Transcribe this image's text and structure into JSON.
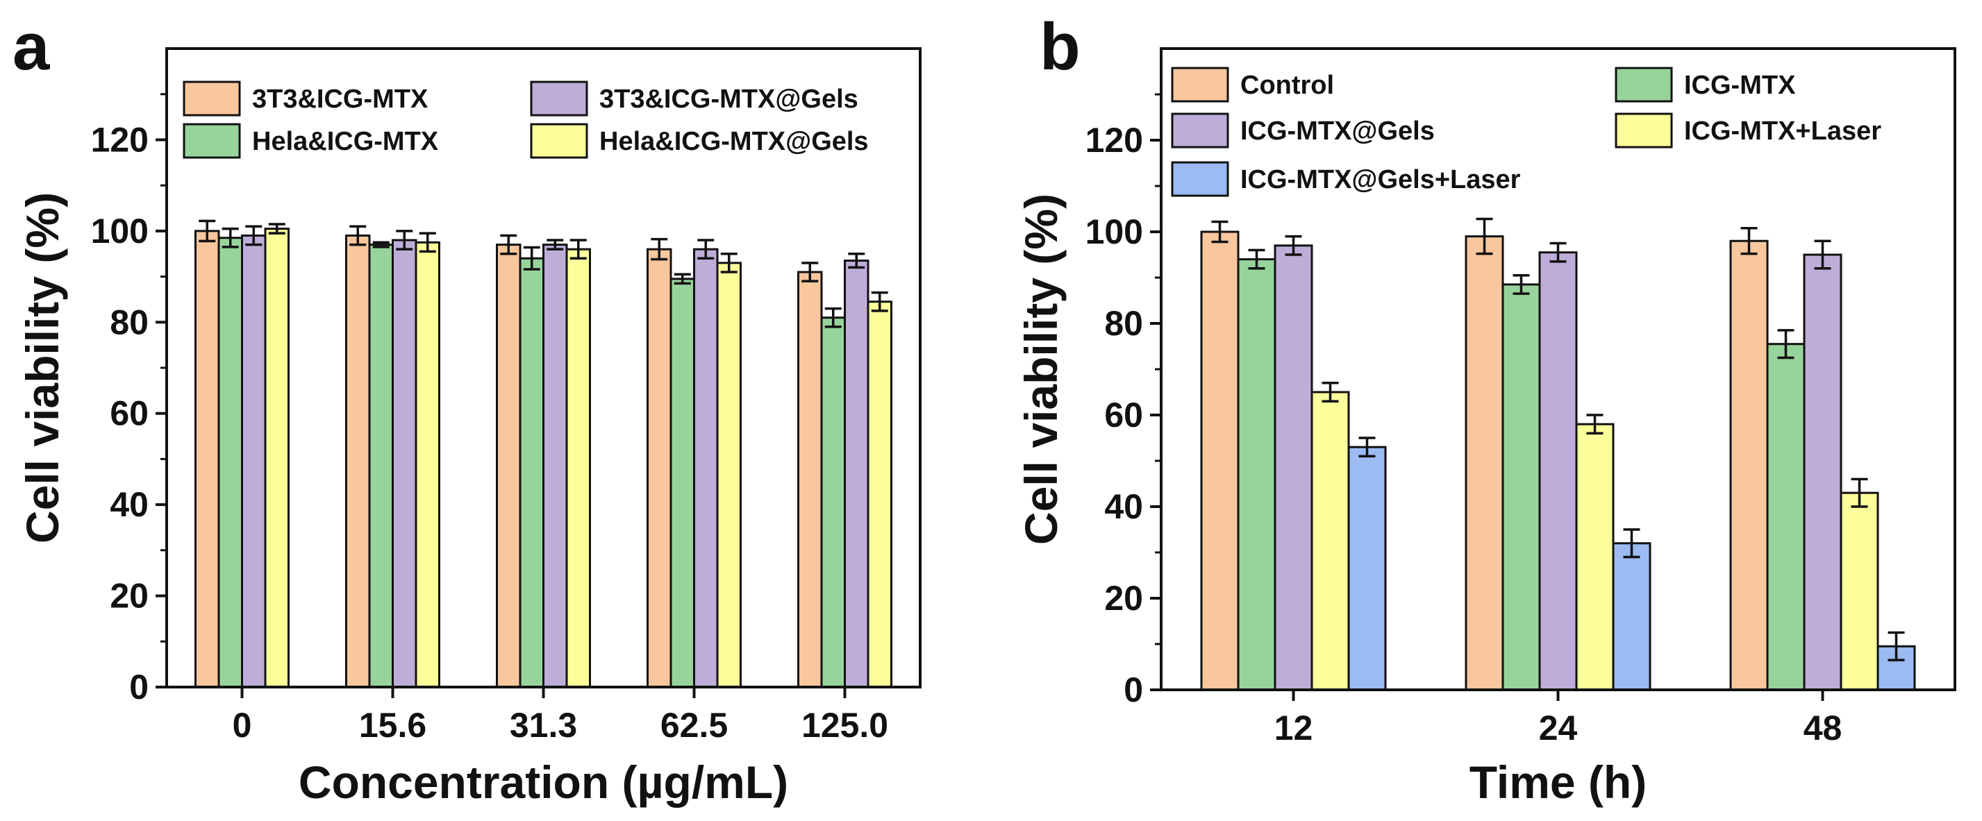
{
  "chart_data": [
    {
      "type": "bar",
      "panel": "a",
      "xlabel": "Concentration (µg/mL)",
      "ylabel": "Cell viability (%)",
      "ylim": [
        0,
        140
      ],
      "yticks": [
        0,
        20,
        40,
        60,
        80,
        100,
        120
      ],
      "categories": [
        "0",
        "15.6",
        "31.3",
        "62.5",
        "125.0"
      ],
      "series": [
        {
          "name": "3T3&ICG-MTX",
          "color": "#F9C79E",
          "values": [
            100,
            99,
            97,
            96,
            91
          ],
          "errors": [
            2.2,
            2.0,
            2.0,
            2.2,
            2.0
          ]
        },
        {
          "name": "Hela&ICG-MTX",
          "color": "#97D49C",
          "values": [
            98.5,
            97,
            94,
            89.5,
            81
          ],
          "errors": [
            2.0,
            0.5,
            2.4,
            1.0,
            2.0
          ]
        },
        {
          "name": "3T3&ICG-MTX@Gels",
          "color": "#BEADD8",
          "values": [
            99,
            98,
            97,
            96,
            93.5
          ],
          "errors": [
            2.0,
            2.0,
            1.0,
            2.0,
            1.5
          ]
        },
        {
          "name": "Hela&ICG-MTX@Gels",
          "color": "#FCFE9A",
          "values": [
            100.5,
            97.5,
            96,
            93,
            84.5
          ],
          "errors": [
            1.0,
            2.0,
            2.0,
            2.0,
            2.0
          ]
        }
      ],
      "legend": [
        [
          "3T3&ICG-MTX",
          "3T3&ICG-MTX@Gels"
        ],
        [
          "Hela&ICG-MTX",
          "Hela&ICG-MTX@Gels"
        ]
      ]
    },
    {
      "type": "bar",
      "panel": "b",
      "xlabel": "Time (h)",
      "ylabel": "Cell viability (%)",
      "ylim": [
        0,
        140
      ],
      "yticks": [
        0,
        20,
        40,
        60,
        80,
        100,
        120
      ],
      "categories": [
        "12",
        "24",
        "48"
      ],
      "series": [
        {
          "name": "Control",
          "color": "#F9C79E",
          "values": [
            100,
            99,
            98
          ],
          "errors": [
            2.2,
            3.8,
            2.8
          ]
        },
        {
          "name": "ICG-MTX",
          "color": "#97D49C",
          "values": [
            94,
            88.5,
            75.5
          ],
          "errors": [
            2.0,
            2.0,
            3.0
          ]
        },
        {
          "name": "ICG-MTX@Gels",
          "color": "#BEADD8",
          "values": [
            97,
            95.5,
            95
          ],
          "errors": [
            2.0,
            2.0,
            3.0
          ]
        },
        {
          "name": "ICG-MTX+Laser",
          "color": "#FCFE9A",
          "values": [
            65,
            58,
            43
          ],
          "errors": [
            2.0,
            2.0,
            3.0
          ]
        },
        {
          "name": "ICG-MTX@Gels+Laser",
          "color": "#9BBBF2",
          "values": [
            53,
            32,
            9.5
          ],
          "errors": [
            2.0,
            3.0,
            3.0
          ]
        }
      ],
      "legend": [
        [
          "Control",
          "ICG-MTX"
        ],
        [
          "ICG-MTX@Gels",
          "ICG-MTX+Laser"
        ],
        [
          "ICG-MTX@Gels+Laser"
        ]
      ]
    }
  ]
}
